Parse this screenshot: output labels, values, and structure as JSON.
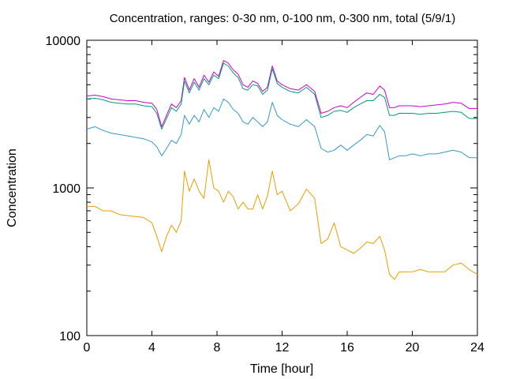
{
  "chart_data": {
    "type": "line",
    "title": "Concentration, ranges: 0-30 nm, 0-100 nm, 0-300 nm, total (5/9/1)",
    "xlabel": "Time [hour]",
    "ylabel": "Concentration",
    "xlim": [
      0,
      24
    ],
    "ylim": [
      100,
      10000
    ],
    "yscale": "log",
    "grid": false,
    "legend": "none",
    "x_ticks": [
      0,
      4,
      8,
      12,
      16,
      20,
      24
    ],
    "x_tick_labels": [
      "0",
      "4",
      "8",
      "12",
      "16",
      "20",
      "24"
    ],
    "y_ticks": [
      100,
      1000,
      10000
    ],
    "y_tick_labels": [
      "100",
      "1000",
      "10000"
    ],
    "x": [
      0,
      0.5,
      1,
      1.5,
      2,
      2.5,
      3,
      3.5,
      4,
      4.3,
      4.6,
      4.9,
      5.2,
      5.5,
      5.8,
      6,
      6.3,
      6.6,
      6.9,
      7.2,
      7.5,
      7.8,
      8.1,
      8.4,
      8.7,
      9,
      9.3,
      9.6,
      9.9,
      10.2,
      10.5,
      10.8,
      11.1,
      11.4,
      11.7,
      12,
      12.5,
      13,
      13.5,
      14,
      14.4,
      14.8,
      15.2,
      15.6,
      16,
      16.4,
      16.8,
      17.2,
      17.6,
      18,
      18.3,
      18.6,
      18.9,
      19.2,
      19.6,
      20,
      20.5,
      21,
      21.5,
      22,
      22.5,
      23,
      23.5,
      24
    ],
    "series": [
      {
        "color": "#cc00cc",
        "values": [
          4200,
          4250,
          4150,
          4000,
          3950,
          3900,
          3900,
          3800,
          3750,
          3400,
          2600,
          3100,
          3700,
          3500,
          3900,
          5600,
          4600,
          5500,
          4800,
          5800,
          5200,
          6100,
          5700,
          7300,
          7000,
          6300,
          5900,
          5000,
          4800,
          5300,
          5100,
          4500,
          4800,
          6700,
          5300,
          5000,
          4700,
          4600,
          5000,
          4500,
          3200,
          3300,
          3500,
          3600,
          3500,
          3800,
          4100,
          4400,
          4300,
          4900,
          4600,
          3500,
          3500,
          3600,
          3600,
          3600,
          3550,
          3600,
          3650,
          3700,
          3800,
          3750,
          3450,
          3450
        ]
      },
      {
        "color": "#009e73",
        "values": [
          4000,
          4050,
          3950,
          3800,
          3750,
          3700,
          3700,
          3600,
          3550,
          3200,
          2500,
          2950,
          3500,
          3300,
          3700,
          5300,
          4400,
          5200,
          4600,
          5500,
          5000,
          5800,
          5500,
          7000,
          6700,
          6000,
          5600,
          4700,
          4600,
          5000,
          4900,
          4300,
          4600,
          6400,
          5100,
          4800,
          4500,
          4400,
          4800,
          4300,
          3000,
          3100,
          3300,
          3350,
          3250,
          3500,
          3700,
          3900,
          3900,
          4300,
          4100,
          3100,
          3100,
          3200,
          3200,
          3200,
          3150,
          3200,
          3200,
          3250,
          3300,
          3250,
          2950,
          2950
        ]
      },
      {
        "color": "#3399cc",
        "values": [
          2500,
          2600,
          2450,
          2350,
          2300,
          2250,
          2200,
          2150,
          2050,
          1900,
          1650,
          1850,
          2100,
          2000,
          2300,
          3100,
          2700,
          3100,
          2800,
          3400,
          3000,
          3500,
          3300,
          4000,
          3800,
          3400,
          3200,
          2800,
          2700,
          3000,
          2800,
          2600,
          2800,
          3800,
          3100,
          2900,
          2700,
          2600,
          2900,
          2600,
          1850,
          1750,
          1800,
          1950,
          1800,
          1950,
          2100,
          2300,
          2250,
          2650,
          2400,
          1550,
          1600,
          1650,
          1650,
          1700,
          1650,
          1700,
          1700,
          1750,
          1800,
          1750,
          1600,
          1600
        ]
      },
      {
        "color": "#e69f00",
        "values": [
          750,
          750,
          700,
          700,
          660,
          650,
          640,
          630,
          580,
          470,
          370,
          470,
          560,
          500,
          600,
          1300,
          950,
          1150,
          950,
          850,
          1550,
          1000,
          950,
          800,
          950,
          870,
          720,
          800,
          720,
          720,
          900,
          720,
          880,
          1300,
          900,
          950,
          700,
          780,
          980,
          850,
          420,
          450,
          580,
          400,
          380,
          360,
          390,
          430,
          420,
          470,
          380,
          260,
          240,
          270,
          270,
          270,
          280,
          270,
          270,
          270,
          300,
          310,
          280,
          260
        ]
      }
    ]
  }
}
